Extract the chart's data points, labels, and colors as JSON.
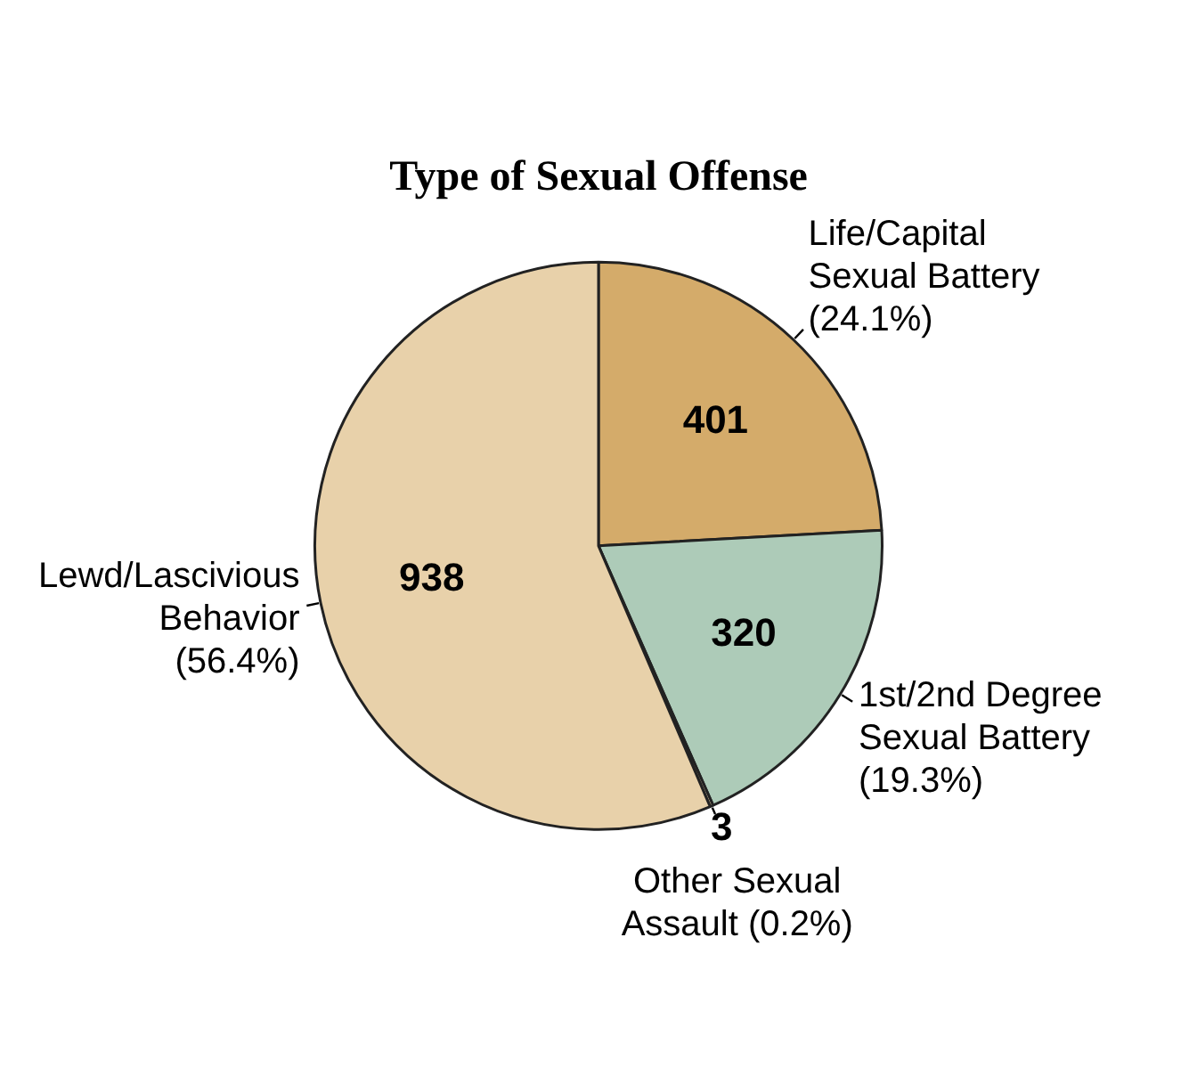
{
  "chart_data": {
    "type": "pie",
    "title": "Type of Sexual Offense",
    "categories": [
      "Life/Capital Sexual Battery (24.1%)",
      "1st/2nd Degree Sexual Battery (19.3%)",
      "Other Sexual Assault (0.2%)",
      "Lewd/Lascivious Behavior (56.4%)"
    ],
    "values": [
      401,
      320,
      3,
      938
    ],
    "colors": [
      "#d4ab6a",
      "#adcbb8",
      "#e8d1aa",
      "#e8d1aa"
    ],
    "data_labels": true,
    "legend": false
  }
}
